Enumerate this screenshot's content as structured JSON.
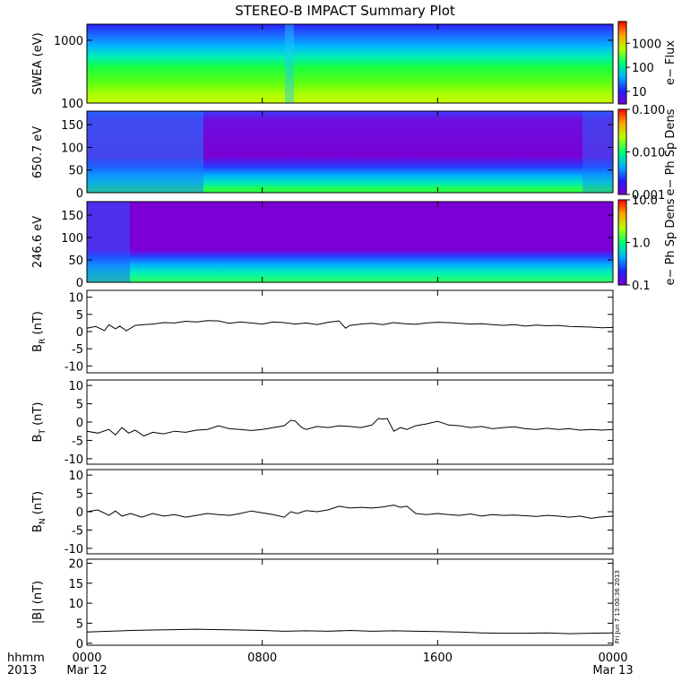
{
  "title": "STEREO-B IMPACT Summary Plot",
  "stamp": "Fri Jun  7 13:00:36 2013",
  "time_axis": {
    "row1_label": "hhmm",
    "row2_label": "2013",
    "ticks": [
      {
        "t": 0,
        "label": "0000",
        "sub": "Mar 12"
      },
      {
        "t": 8,
        "label": "0800",
        "sub": ""
      },
      {
        "t": 16,
        "label": "1600",
        "sub": ""
      },
      {
        "t": 24,
        "label": "0000",
        "sub": "Mar 13"
      }
    ],
    "range_hours": [
      0,
      24
    ]
  },
  "chart_data": [
    {
      "type": "heatmap",
      "ylabel": "SWEA (eV)",
      "yscale": "log",
      "ylim": [
        100,
        1800
      ],
      "yticks": [
        {
          "v": 1000,
          "label": "1000"
        },
        {
          "v": 100,
          "label": "100"
        }
      ],
      "colorbar": {
        "label": "e− Flux",
        "scale": "log",
        "range": [
          3,
          8000
        ],
        "ticks": [
          {
            "v": 1000,
            "label": "1000"
          },
          {
            "v": 100,
            "label": "100"
          },
          {
            "v": 10,
            "label": "10"
          }
        ]
      }
    },
    {
      "type": "heatmap",
      "ylabel": "650.7 eV",
      "ylim": [
        0,
        180
      ],
      "yticks": [
        {
          "v": 150,
          "label": "150"
        },
        {
          "v": 100,
          "label": "100"
        },
        {
          "v": 50,
          "label": "50"
        },
        {
          "v": 0,
          "label": "0"
        }
      ],
      "colorbar": {
        "label": "e− Ph Sp Dens",
        "scale": "log",
        "range": [
          0.001,
          0.1
        ],
        "ticks": [
          {
            "v": 0.1,
            "label": "0.100"
          },
          {
            "v": 0.01,
            "label": "0.010"
          },
          {
            "v": 0.001,
            "label": "0.001"
          }
        ]
      }
    },
    {
      "type": "heatmap",
      "ylabel": "246.6 eV",
      "ylim": [
        0,
        180
      ],
      "yticks": [
        {
          "v": 150,
          "label": "150"
        },
        {
          "v": 100,
          "label": "100"
        },
        {
          "v": 50,
          "label": "50"
        },
        {
          "v": 0,
          "label": "0"
        }
      ],
      "colorbar": {
        "label": "e− Ph Sp Dens",
        "scale": "log",
        "range": [
          0.1,
          10
        ],
        "ticks": [
          {
            "v": 10,
            "label": "10.0"
          },
          {
            "v": 1,
            "label": "1.0"
          },
          {
            "v": 0.1,
            "label": "0.1"
          }
        ]
      }
    },
    {
      "type": "line",
      "ylabel": "B",
      "ysub": "R",
      "yunit": "(nT)",
      "ylim": [
        -12,
        12
      ],
      "yticks": [
        10,
        5,
        0,
        -5,
        -10
      ],
      "x": [
        0,
        0.4,
        0.8,
        1.0,
        1.3,
        1.5,
        1.8,
        2.2,
        2.6,
        3.0,
        3.5,
        4.0,
        4.5,
        5.0,
        5.5,
        6.0,
        6.5,
        7.0,
        7.5,
        8.0,
        8.5,
        9.0,
        9.5,
        10.0,
        10.5,
        11.0,
        11.5,
        11.8,
        12.0,
        12.5,
        13.0,
        13.5,
        14.0,
        14.5,
        15.0,
        15.5,
        16.0,
        16.5,
        17.0,
        17.5,
        18.0,
        18.5,
        19.0,
        19.5,
        20.0,
        20.5,
        21.0,
        21.5,
        22.0,
        22.5,
        23.0,
        23.5,
        24.0
      ],
      "y": [
        1.0,
        1.5,
        0.3,
        2.0,
        0.8,
        1.6,
        0.2,
        1.8,
        2.0,
        2.2,
        2.6,
        2.5,
        3.0,
        2.8,
        3.2,
        3.1,
        2.4,
        2.8,
        2.5,
        2.2,
        2.8,
        2.6,
        2.2,
        2.5,
        2.0,
        2.7,
        3.1,
        1.0,
        1.8,
        2.2,
        2.4,
        2.0,
        2.6,
        2.3,
        2.1,
        2.5,
        2.7,
        2.6,
        2.4,
        2.2,
        2.3,
        2.0,
        1.8,
        2.0,
        1.6,
        1.9,
        1.7,
        1.8,
        1.5,
        1.4,
        1.3,
        1.1,
        1.2
      ]
    },
    {
      "type": "line",
      "ylabel": "B",
      "ysub": "T",
      "yunit": "(nT)",
      "ylim": [
        -11.5,
        11.5
      ],
      "yticks": [
        10,
        5,
        0,
        -5,
        -10
      ],
      "x": [
        0,
        0.5,
        1.0,
        1.3,
        1.6,
        1.9,
        2.2,
        2.6,
        3.0,
        3.5,
        4.0,
        4.5,
        5.0,
        5.5,
        6.0,
        6.5,
        7.0,
        7.5,
        8.0,
        8.5,
        9.0,
        9.3,
        9.5,
        9.8,
        10.0,
        10.5,
        11.0,
        11.5,
        12.0,
        12.5,
        13.0,
        13.3,
        13.5,
        13.7,
        14.0,
        14.3,
        14.6,
        15.0,
        15.5,
        16.0,
        16.5,
        17.0,
        17.5,
        18.0,
        18.5,
        19.0,
        19.5,
        20.0,
        20.5,
        21.0,
        21.5,
        22.0,
        22.5,
        23.0,
        23.5,
        24.0
      ],
      "y": [
        -2.5,
        -3.0,
        -2.0,
        -3.5,
        -1.5,
        -3.0,
        -2.2,
        -3.8,
        -2.8,
        -3.2,
        -2.5,
        -2.8,
        -2.2,
        -2.0,
        -1.0,
        -1.8,
        -2.0,
        -2.3,
        -2.0,
        -1.5,
        -1.0,
        0.5,
        0.3,
        -1.5,
        -2.0,
        -1.2,
        -1.5,
        -1.0,
        -1.2,
        -1.5,
        -0.8,
        1.0,
        0.8,
        1.0,
        -2.5,
        -1.5,
        -2.0,
        -1.0,
        -0.5,
        0.2,
        -0.8,
        -1.0,
        -1.5,
        -1.2,
        -1.8,
        -1.5,
        -1.3,
        -1.8,
        -2.0,
        -1.7,
        -2.0,
        -1.8,
        -2.2,
        -2.0,
        -2.2,
        -2.0
      ]
    },
    {
      "type": "line",
      "ylabel": "B",
      "ysub": "N",
      "yunit": "(nT)",
      "ylim": [
        -11.5,
        11.5
      ],
      "yticks": [
        10,
        5,
        0,
        -5,
        -10
      ],
      "x": [
        0,
        0.5,
        1.0,
        1.3,
        1.6,
        2.0,
        2.5,
        3.0,
        3.5,
        4.0,
        4.5,
        5.0,
        5.5,
        6.0,
        6.5,
        7.0,
        7.5,
        8.0,
        8.5,
        9.0,
        9.3,
        9.6,
        10.0,
        10.5,
        11.0,
        11.5,
        12.0,
        12.5,
        13.0,
        13.5,
        14.0,
        14.3,
        14.6,
        15.0,
        15.5,
        16.0,
        16.5,
        17.0,
        17.5,
        18.0,
        18.5,
        19.0,
        19.5,
        20.0,
        20.5,
        21.0,
        21.5,
        22.0,
        22.5,
        23.0,
        23.5,
        24.0
      ],
      "y": [
        0.0,
        0.5,
        -1.0,
        0.2,
        -1.2,
        -0.5,
        -1.5,
        -0.5,
        -1.2,
        -0.8,
        -1.5,
        -1.0,
        -0.5,
        -0.8,
        -1.0,
        -0.5,
        0.2,
        -0.3,
        -0.8,
        -1.5,
        0.0,
        -0.5,
        0.3,
        0.0,
        0.5,
        1.5,
        1.0,
        1.2,
        1.0,
        1.3,
        1.8,
        1.2,
        1.5,
        -0.5,
        -0.8,
        -0.5,
        -0.8,
        -1.0,
        -0.6,
        -1.2,
        -0.8,
        -1.0,
        -0.9,
        -1.1,
        -1.3,
        -1.0,
        -1.2,
        -1.5,
        -1.2,
        -1.8,
        -1.4,
        -1.2
      ]
    },
    {
      "type": "line",
      "ylabel": "|B|",
      "yunit": "(nT)",
      "ylim": [
        -0.5,
        21
      ],
      "yticks": [
        20,
        15,
        10,
        5,
        0
      ],
      "x": [
        0,
        1,
        2,
        3,
        4,
        5,
        6,
        7,
        8,
        9,
        10,
        11,
        12,
        13,
        14,
        15,
        16,
        17,
        18,
        19,
        20,
        21,
        22,
        23,
        24
      ],
      "y": [
        2.8,
        3.0,
        3.2,
        3.3,
        3.4,
        3.5,
        3.4,
        3.3,
        3.2,
        3.0,
        3.1,
        3.0,
        3.2,
        3.0,
        3.1,
        3.0,
        2.9,
        2.8,
        2.6,
        2.5,
        2.5,
        2.6,
        2.4,
        2.5,
        2.6
      ]
    }
  ]
}
